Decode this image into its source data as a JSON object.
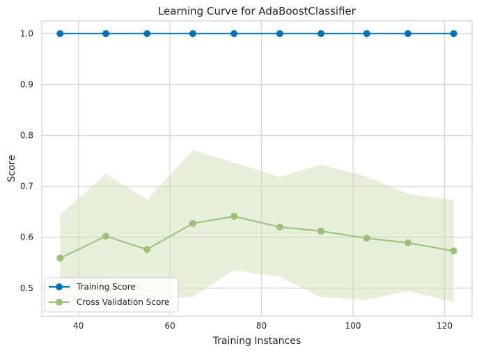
{
  "chart_data": {
    "type": "line",
    "title": "Learning Curve for AdaBoostClassifier",
    "xlabel": "Training Instances",
    "ylabel": "Score",
    "xlim": [
      32,
      126
    ],
    "ylim": [
      0.445,
      1.025
    ],
    "xticks": [
      40,
      60,
      80,
      100,
      120
    ],
    "yticks": [
      0.5,
      0.6,
      0.7,
      0.8,
      0.9,
      1.0
    ],
    "x": [
      36,
      46,
      55,
      65,
      74,
      84,
      93,
      103,
      112,
      122
    ],
    "series": [
      {
        "name": "Training Score",
        "color": "#0072b2",
        "values": [
          1.0,
          1.0,
          1.0,
          1.0,
          1.0,
          1.0,
          1.0,
          1.0,
          1.0,
          1.0
        ],
        "band_upper": [
          1.0,
          1.0,
          1.0,
          1.0,
          1.0,
          1.0,
          1.0,
          1.0,
          1.0,
          1.0
        ],
        "band_lower": [
          1.0,
          1.0,
          1.0,
          1.0,
          1.0,
          1.0,
          1.0,
          1.0,
          1.0,
          1.0
        ]
      },
      {
        "name": "Cross Validation Score",
        "color": "#9cc075",
        "band_color": "#c5dcae",
        "values": [
          0.559,
          0.602,
          0.576,
          0.627,
          0.641,
          0.62,
          0.612,
          0.598,
          0.589,
          0.573
        ],
        "band_upper": [
          0.644,
          0.724,
          0.674,
          0.771,
          0.747,
          0.718,
          0.743,
          0.719,
          0.685,
          0.673
        ],
        "band_lower": [
          0.474,
          0.48,
          0.478,
          0.483,
          0.535,
          0.522,
          0.482,
          0.477,
          0.494,
          0.473
        ]
      }
    ],
    "grid": true,
    "legend_position": "bottom-left"
  }
}
